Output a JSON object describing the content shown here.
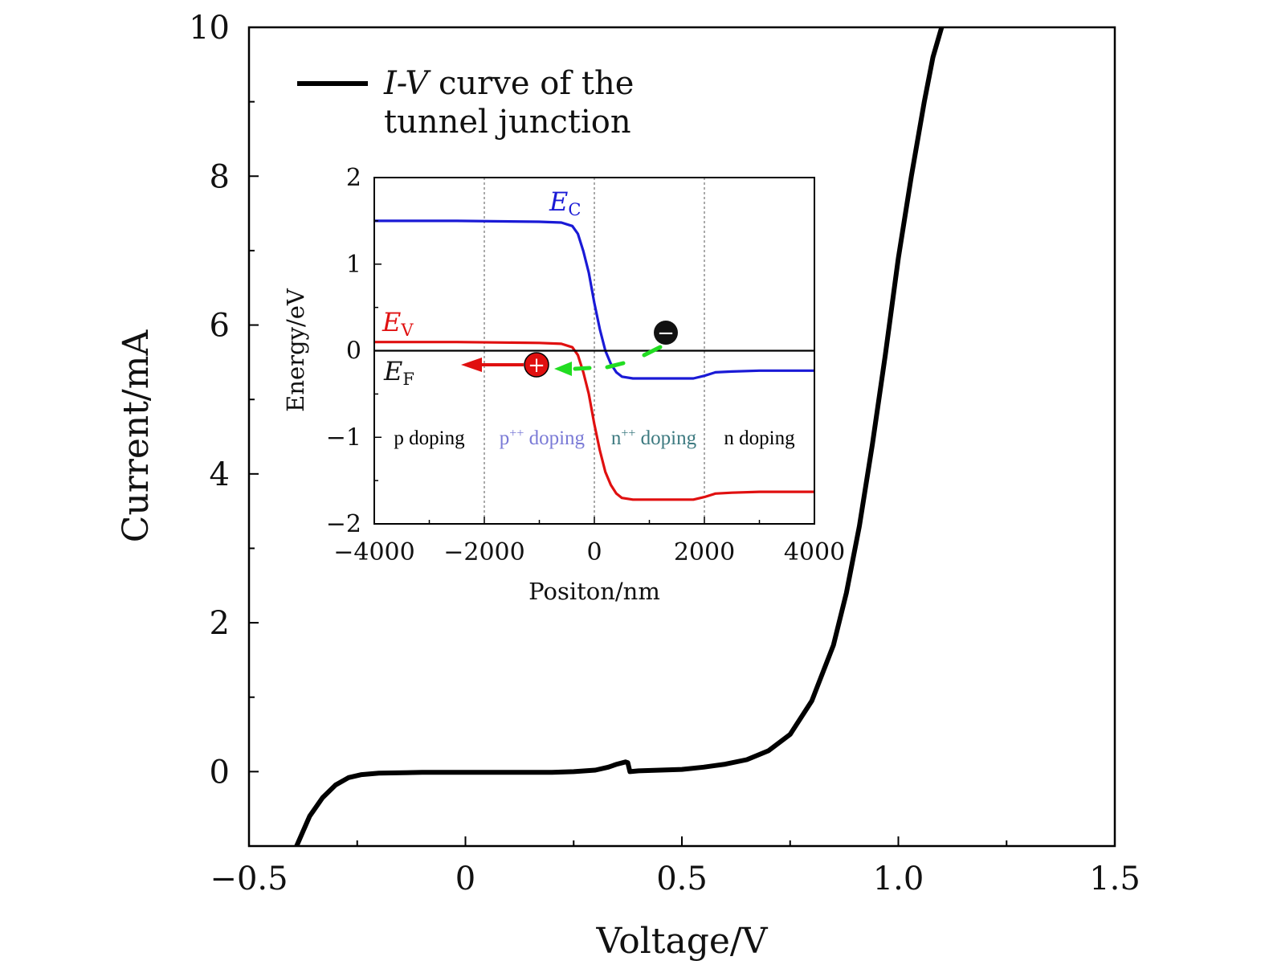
{
  "chart_data": [
    {
      "type": "line",
      "xlabel": "Voltage/V",
      "ylabel": "Current/mA",
      "xlim": [
        -0.5,
        1.5
      ],
      "ylim": [
        -1,
        10
      ],
      "xticks": [
        -0.5,
        0,
        0.5,
        1.0,
        1.5
      ],
      "xtick_labels": [
        "−0.5",
        "0",
        "0.5",
        "1.0",
        "1.5"
      ],
      "yticks": [
        0,
        2,
        4,
        6,
        8,
        10
      ],
      "ytick_labels": [
        "0",
        "2",
        "4",
        "6",
        "8",
        "10"
      ],
      "grid": false,
      "legend": {
        "placement": "top-left",
        "italic_prefix": "I-V",
        "line1_rest": " curve of the",
        "line2": "tunnel junction"
      },
      "series": [
        {
          "name": "I-V curve of the tunnel junction",
          "color": "#000000",
          "x": [
            -0.39,
            -0.36,
            -0.33,
            -0.3,
            -0.27,
            -0.24,
            -0.2,
            -0.1,
            0.0,
            0.1,
            0.2,
            0.25,
            0.3,
            0.33,
            0.35,
            0.37,
            0.375,
            0.38,
            0.4,
            0.45,
            0.5,
            0.55,
            0.6,
            0.65,
            0.7,
            0.75,
            0.8,
            0.85,
            0.88,
            0.91,
            0.94,
            0.97,
            1.0,
            1.03,
            1.06,
            1.08,
            1.1
          ],
          "y": [
            -1.0,
            -0.6,
            -0.35,
            -0.18,
            -0.08,
            -0.04,
            -0.02,
            -0.01,
            -0.01,
            -0.01,
            -0.01,
            0.0,
            0.02,
            0.06,
            0.1,
            0.13,
            0.12,
            0.0,
            0.01,
            0.02,
            0.03,
            0.06,
            0.1,
            0.16,
            0.28,
            0.5,
            0.95,
            1.7,
            2.4,
            3.3,
            4.4,
            5.6,
            6.9,
            8.0,
            9.0,
            9.6,
            10.0
          ]
        }
      ]
    },
    {
      "type": "line",
      "xlabel": "Positon/nm",
      "ylabel": "Energy/eV",
      "xlim": [
        -4000,
        4000
      ],
      "ylim": [
        -2,
        2
      ],
      "xticks": [
        -4000,
        -2000,
        0,
        2000,
        4000
      ],
      "xtick_labels": [
        "−4000",
        "−2000",
        "0",
        "2000",
        "4000"
      ],
      "yticks": [
        -2,
        -1,
        0,
        1,
        2
      ],
      "ytick_labels": [
        "−2",
        "−1",
        "0",
        "1",
        "2"
      ],
      "grid": false,
      "boundaries": [
        -2000,
        0,
        2000
      ],
      "regions": [
        {
          "label": "p doping",
          "sup": "",
          "rest": "",
          "color": "#000000",
          "x": -3000
        },
        {
          "label": "p",
          "sup": "++",
          "rest": " doping",
          "color": "#7a7ad6",
          "x": -950
        },
        {
          "label": "n",
          "sup": "++",
          "rest": " doping",
          "color": "#3d7a80",
          "x": 1080
        },
        {
          "label": "n doping",
          "sup": "",
          "rest": "",
          "color": "#000000",
          "x": 3000
        }
      ],
      "band_labels": {
        "ec": {
          "main": "E",
          "sub": "C"
        },
        "ev": {
          "main": "E",
          "sub": "V"
        },
        "ef": {
          "main": "E",
          "sub": "F"
        }
      },
      "carriers": {
        "hole": {
          "symbol": "+",
          "x": -1050,
          "y": -0.16
        },
        "electron": {
          "symbol": "−",
          "x": 1300,
          "y": 0.21
        }
      },
      "series": [
        {
          "name": "E_C",
          "color": "#1a1ad6",
          "x": [
            -4000,
            -2500,
            -1000,
            -600,
            -400,
            -300,
            -200,
            -100,
            0,
            100,
            200,
            300,
            400,
            500,
            700,
            1000,
            1500,
            1800,
            2000,
            2200,
            2500,
            3000,
            4000
          ],
          "y": [
            1.5,
            1.5,
            1.49,
            1.48,
            1.44,
            1.35,
            1.15,
            0.9,
            0.55,
            0.25,
            0.0,
            -0.15,
            -0.25,
            -0.3,
            -0.32,
            -0.32,
            -0.32,
            -0.32,
            -0.29,
            -0.25,
            -0.24,
            -0.23,
            -0.23
          ]
        },
        {
          "name": "E_V",
          "color": "#e01010",
          "x": [
            -4000,
            -2500,
            -1000,
            -600,
            -400,
            -300,
            -200,
            -100,
            0,
            100,
            200,
            300,
            400,
            500,
            700,
            1000,
            1500,
            1800,
            2000,
            2200,
            2500,
            3000,
            4000
          ],
          "y": [
            0.1,
            0.1,
            0.09,
            0.08,
            0.04,
            -0.05,
            -0.25,
            -0.5,
            -0.85,
            -1.15,
            -1.4,
            -1.55,
            -1.65,
            -1.7,
            -1.72,
            -1.72,
            -1.72,
            -1.72,
            -1.69,
            -1.65,
            -1.64,
            -1.63,
            -1.63
          ]
        },
        {
          "name": "E_F",
          "color": "#000000",
          "x": [
            -4000,
            4000
          ],
          "y": [
            0,
            0
          ]
        }
      ]
    }
  ]
}
